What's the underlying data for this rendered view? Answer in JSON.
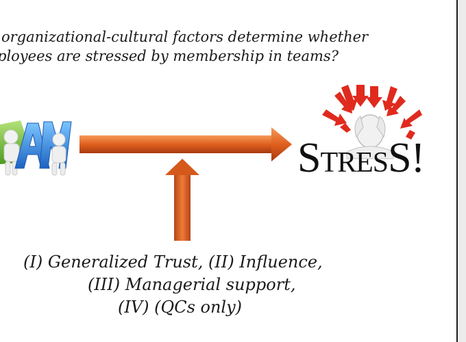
{
  "slide": {
    "question_line1": "organizational-cultural factors determine whether",
    "question_line2": "ployees are stressed by membership in teams?",
    "team_logo_letters": [
      "A",
      "M"
    ],
    "stress_label": {
      "first": "S",
      "middle": "TRES",
      "last": "S",
      "bang": "!"
    },
    "factors": {
      "line1": "(I)  Generalized Trust, (II) Influence,",
      "line2": "(III) Managerial support,",
      "line3": "(IV) (QCs only)"
    }
  },
  "colors": {
    "arrow_light": "#f08a4a",
    "arrow_dark": "#b63f12",
    "stress_red": "#e02a1e",
    "team_blue": "#3a8fe0",
    "team_green": "#7cc243"
  }
}
